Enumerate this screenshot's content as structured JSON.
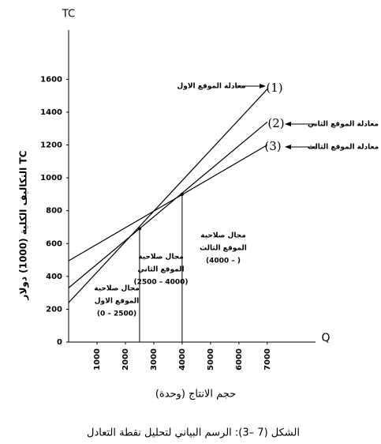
{
  "chart_data": {
    "type": "line",
    "title": "الشكل (7 –3): الرسم البياني لتحليل نقطة التعادل",
    "y_label": "التكاليف الكلية (1000) دولار TC",
    "y_axis_name": "TC",
    "x_label": "حجم الانتاج (وحدة)",
    "x_axis_name": "Q",
    "x": [
      0,
      7000
    ],
    "series": [
      {
        "name": "(1)",
        "label": "معادلة الموقع الاول",
        "color": "#000000",
        "values": [
          240,
          1540
        ]
      },
      {
        "name": "(2)",
        "label": "معادلة الموقع الثاني",
        "color": "#000000",
        "values": [
          330,
          1340
        ]
      },
      {
        "name": "(3)",
        "label": "معادلة الموقع الثالث",
        "color": "#000000",
        "values": [
          495,
          1200
        ]
      }
    ],
    "break_even": {
      "x": [
        2500,
        4000
      ],
      "values": [
        690,
        900
      ]
    },
    "regions": [
      {
        "lines": [
          "مجال صلاحية",
          "الموقع الاول",
          "(0 – 2500)"
        ]
      },
      {
        "lines": [
          "مجال صلاحية",
          "الموقع الثاني",
          "(2500 – 4000)"
        ]
      },
      {
        "lines": [
          "مجال صلاحية",
          "الموقع الثالث",
          "(4000 –      )"
        ]
      }
    ],
    "xlim": [
      0,
      8700
    ],
    "ylim": [
      0,
      1900
    ],
    "xticks": [
      1000,
      2000,
      3000,
      4000,
      5000,
      6000,
      7000
    ],
    "yticks": [
      0,
      200,
      400,
      600,
      800,
      1000,
      1200,
      1400,
      1600
    ]
  }
}
